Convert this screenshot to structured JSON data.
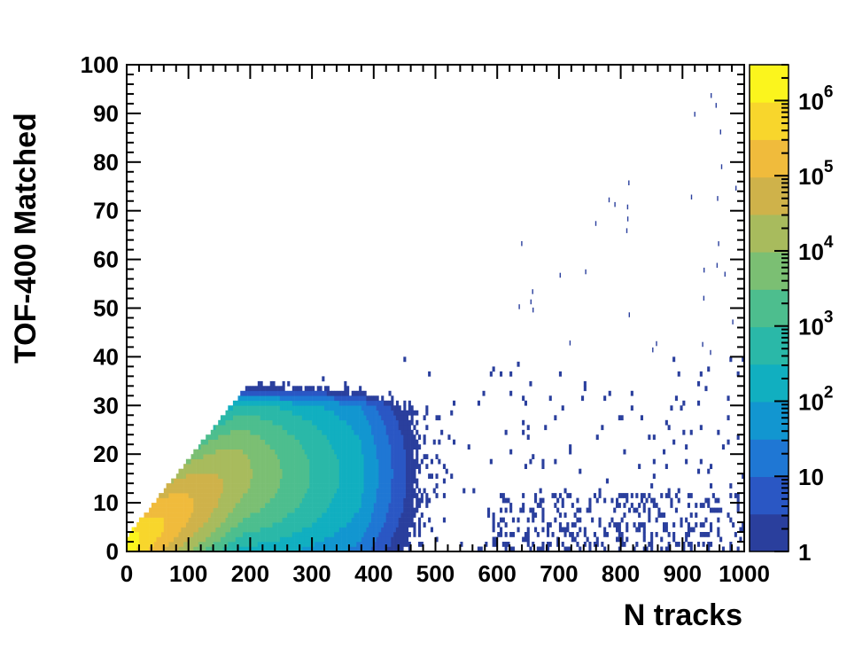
{
  "chart_data": {
    "type": "heatmap",
    "title": "",
    "xlabel": "N tracks",
    "ylabel": "TOF-400 Matched",
    "xlim": [
      0,
      1000
    ],
    "ylim": [
      0,
      100
    ],
    "x_ticks": [
      "0",
      "100",
      "200",
      "300",
      "400",
      "500",
      "600",
      "700",
      "800",
      "900",
      "1000"
    ],
    "y_ticks": [
      "0",
      "10",
      "20",
      "30",
      "40",
      "50",
      "60",
      "70",
      "80",
      "90",
      "100"
    ],
    "colorbar": {
      "scale": "log",
      "range": [
        1,
        3000000
      ],
      "tick_labels": [
        {
          "base": "1",
          "exp": ""
        },
        {
          "base": "10",
          "exp": ""
        },
        {
          "base": "10",
          "exp": "2"
        },
        {
          "base": "10",
          "exp": "3"
        },
        {
          "base": "10",
          "exp": "4"
        },
        {
          "base": "10",
          "exp": "5"
        },
        {
          "base": "10",
          "exp": "6"
        }
      ],
      "palette": [
        "#2a3f9d",
        "#2a57c4",
        "#1f77d4",
        "#1296d0",
        "#11afc0",
        "#2ab8a8",
        "#4dbe8e",
        "#7bbf73",
        "#a8bb5d",
        "#cfb24a",
        "#f0bb3c",
        "#f8d62c",
        "#fbf51d"
      ]
    },
    "distribution": {
      "description_points": [
        {
          "x": 20,
          "y": 2,
          "count": 3000000
        },
        {
          "x": 130,
          "y": 10,
          "count": 100000
        },
        {
          "x": 250,
          "y": 15,
          "count": 5000
        },
        {
          "x": 350,
          "y": 15,
          "count": 500
        },
        {
          "x": 420,
          "y": 10,
          "count": 30
        },
        {
          "x": 600,
          "y": 5,
          "count": 5
        },
        {
          "x": 900,
          "y": 3,
          "count": 1
        }
      ],
      "max_matched_ratio": 0.16,
      "dense_ceiling_y": 30
    }
  }
}
